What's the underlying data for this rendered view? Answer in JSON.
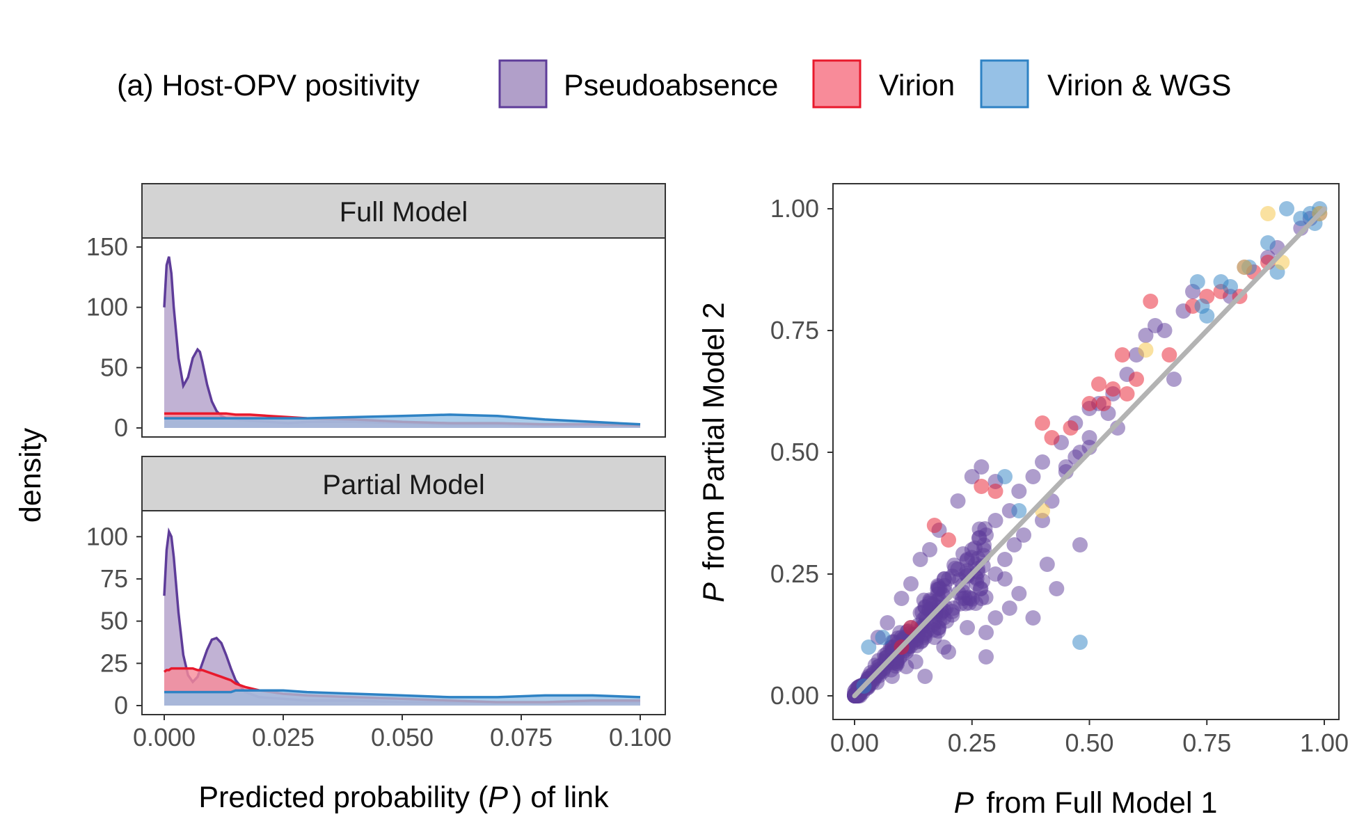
{
  "legend": {
    "title": "(a) Host-OPV positivity",
    "items": [
      {
        "label": "Pseudoabsence",
        "fill": "#b19fc9",
        "stroke": "#5e3c99"
      },
      {
        "label": "Virion",
        "fill": "#f88b99",
        "stroke": "#e8192c"
      },
      {
        "label": "Virion & WGS",
        "fill": "#96c1e6",
        "stroke": "#2e82c4"
      }
    ]
  },
  "colors": {
    "pseudoabsence": "#5e3c99",
    "virion": "#e8192c",
    "virion_wgs": "#2e82c4",
    "other_points": "#f6c342",
    "fit_line": "#b3b3b3",
    "strip_bg": "#d3d3d3"
  },
  "left": {
    "ylabel": "density",
    "xlabel_prefix": "Predicted probability (",
    "xlabel_italic": "P",
    "xlabel_suffix": ") of link",
    "x_ticks": [
      "0.000",
      "0.025",
      "0.050",
      "0.075",
      "0.100"
    ],
    "panels": [
      {
        "strip": "Full Model",
        "y_ticks": [
          "0",
          "50",
          "100",
          "150"
        ]
      },
      {
        "strip": "Partial Model",
        "y_ticks": [
          "0",
          "25",
          "50",
          "75",
          "100"
        ]
      }
    ]
  },
  "right": {
    "xlabel_italic": "P",
    "xlabel_rest": " from Full Model 1",
    "ylabel_italic": "P",
    "ylabel_rest": " from Partial Model 2",
    "x_ticks": [
      "0.00",
      "0.25",
      "0.50",
      "0.75",
      "1.00"
    ],
    "y_ticks": [
      "0.00",
      "0.25",
      "0.50",
      "0.75",
      "1.00"
    ]
  },
  "chart_data": [
    {
      "type": "area",
      "facet": "Full Model",
      "xlim": [
        0,
        0.1
      ],
      "ylim": [
        0,
        150
      ],
      "x": [
        0.0,
        0.0005,
        0.001,
        0.0015,
        0.002,
        0.003,
        0.004,
        0.005,
        0.006,
        0.007,
        0.0075,
        0.008,
        0.009,
        0.01,
        0.011,
        0.012,
        0.013,
        0.015,
        0.018,
        0.022,
        0.026,
        0.03,
        0.04,
        0.05,
        0.06,
        0.07,
        0.08,
        0.09,
        0.1
      ],
      "series": [
        {
          "name": "Pseudoabsence",
          "values": [
            100,
            135,
            142,
            128,
            100,
            58,
            35,
            42,
            58,
            65,
            63,
            55,
            36,
            22,
            14,
            10,
            8,
            7,
            6,
            5,
            4,
            5,
            5,
            4,
            3,
            3,
            2,
            2,
            2
          ]
        },
        {
          "name": "Virion",
          "values": [
            12,
            12,
            12,
            12,
            12,
            12,
            12,
            12,
            12,
            12,
            12,
            12,
            12,
            12,
            12,
            12,
            12,
            11,
            11,
            10,
            9,
            8,
            7,
            5,
            4,
            4,
            3,
            3,
            2
          ]
        },
        {
          "name": "Virion & WGS",
          "values": [
            8,
            8,
            8,
            8,
            8,
            8,
            8,
            8,
            8,
            8,
            8,
            8,
            8,
            8,
            8,
            8,
            8,
            8,
            8,
            8,
            8,
            8,
            9,
            10,
            11,
            10,
            7,
            5,
            3
          ]
        }
      ]
    },
    {
      "type": "area",
      "facet": "Partial Model",
      "xlim": [
        0,
        0.1
      ],
      "ylim": [
        0,
        110
      ],
      "x": [
        0.0,
        0.0005,
        0.001,
        0.0015,
        0.002,
        0.003,
        0.004,
        0.005,
        0.006,
        0.007,
        0.008,
        0.009,
        0.01,
        0.011,
        0.012,
        0.013,
        0.014,
        0.015,
        0.017,
        0.02,
        0.025,
        0.03,
        0.04,
        0.05,
        0.06,
        0.07,
        0.08,
        0.09,
        0.1
      ],
      "series": [
        {
          "name": "Pseudoabsence",
          "values": [
            65,
            92,
            103,
            100,
            88,
            55,
            30,
            18,
            14,
            17,
            25,
            33,
            39,
            40,
            37,
            30,
            22,
            15,
            8,
            5,
            4,
            3,
            3,
            2,
            2,
            2,
            2,
            2,
            2
          ]
        },
        {
          "name": "Virion",
          "values": [
            20,
            21,
            21,
            22,
            22,
            22,
            22,
            22,
            22,
            21,
            21,
            20,
            19,
            18,
            17,
            16,
            15,
            13,
            11,
            9,
            7,
            6,
            5,
            4,
            3,
            2,
            2,
            3,
            3
          ]
        },
        {
          "name": "Virion & WGS",
          "values": [
            8,
            8,
            8,
            8,
            8,
            8,
            8,
            8,
            8,
            8,
            8,
            8,
            8,
            8,
            8,
            8,
            8,
            9,
            9,
            9,
            9,
            8,
            7,
            6,
            5,
            5,
            6,
            6,
            5
          ]
        }
      ]
    },
    {
      "type": "scatter",
      "xlim": [
        -0.05,
        1.03
      ],
      "ylim": [
        -0.05,
        1.03
      ],
      "trend_line": {
        "x": [
          0,
          1
        ],
        "y": [
          0,
          1
        ]
      },
      "series": [
        {
          "name": "Pseudoabsence",
          "points": [
            [
              0.01,
              0.01
            ],
            [
              0.02,
              0.015
            ],
            [
              0.03,
              0.04
            ],
            [
              0.05,
              0.06
            ],
            [
              0.06,
              0.05
            ],
            [
              0.07,
              0.08
            ],
            [
              0.08,
              0.1
            ],
            [
              0.09,
              0.07
            ],
            [
              0.1,
              0.12
            ],
            [
              0.11,
              0.09
            ],
            [
              0.12,
              0.14
            ],
            [
              0.13,
              0.11
            ],
            [
              0.14,
              0.17
            ],
            [
              0.15,
              0.13
            ],
            [
              0.16,
              0.19
            ],
            [
              0.17,
              0.15
            ],
            [
              0.18,
              0.22
            ],
            [
              0.19,
              0.16
            ],
            [
              0.2,
              0.24
            ],
            [
              0.21,
              0.18
            ],
            [
              0.22,
              0.26
            ],
            [
              0.23,
              0.2
            ],
            [
              0.24,
              0.28
            ],
            [
              0.25,
              0.3
            ],
            [
              0.26,
              0.23
            ],
            [
              0.28,
              0.33
            ],
            [
              0.3,
              0.25
            ],
            [
              0.3,
              0.36
            ],
            [
              0.32,
              0.28
            ],
            [
              0.33,
              0.38
            ],
            [
              0.34,
              0.31
            ],
            [
              0.35,
              0.42
            ],
            [
              0.36,
              0.33
            ],
            [
              0.38,
              0.45
            ],
            [
              0.4,
              0.36
            ],
            [
              0.4,
              0.48
            ],
            [
              0.42,
              0.4
            ],
            [
              0.44,
              0.52
            ],
            [
              0.45,
              0.47
            ],
            [
              0.47,
              0.56
            ],
            [
              0.48,
              0.5
            ],
            [
              0.5,
              0.59
            ],
            [
              0.5,
              0.53
            ],
            [
              0.52,
              0.6
            ],
            [
              0.54,
              0.58
            ],
            [
              0.55,
              0.62
            ],
            [
              0.56,
              0.55
            ],
            [
              0.58,
              0.66
            ],
            [
              0.6,
              0.7
            ],
            [
              0.62,
              0.74
            ],
            [
              0.64,
              0.76
            ],
            [
              0.66,
              0.75
            ],
            [
              0.68,
              0.65
            ],
            [
              0.7,
              0.79
            ],
            [
              0.72,
              0.83
            ],
            [
              0.8,
              0.82
            ],
            [
              0.83,
              0.88
            ],
            [
              0.88,
              0.9
            ],
            [
              0.9,
              0.92
            ],
            [
              0.95,
              0.96
            ],
            [
              0.97,
              0.98
            ],
            [
              0.99,
              0.99
            ],
            [
              0.15,
              0.04
            ],
            [
              0.2,
              0.09
            ],
            [
              0.19,
              0.1
            ],
            [
              0.28,
              0.08
            ],
            [
              0.28,
              0.13
            ],
            [
              0.3,
              0.16
            ],
            [
              0.33,
              0.18
            ],
            [
              0.35,
              0.21
            ],
            [
              0.38,
              0.16
            ],
            [
              0.41,
              0.27
            ],
            [
              0.43,
              0.22
            ],
            [
              0.48,
              0.31
            ],
            [
              0.22,
              0.4
            ],
            [
              0.25,
              0.45
            ],
            [
              0.27,
              0.47
            ],
            [
              0.3,
              0.44
            ],
            [
              0.45,
              0.46
            ],
            [
              0.47,
              0.49
            ],
            [
              0.5,
              0.51
            ],
            [
              0.05,
              0.12
            ],
            [
              0.07,
              0.15
            ],
            [
              0.1,
              0.2
            ],
            [
              0.12,
              0.23
            ],
            [
              0.14,
              0.28
            ],
            [
              0.16,
              0.3
            ],
            [
              0.18,
              0.34
            ],
            [
              0.08,
              0.04
            ],
            [
              0.11,
              0.06
            ],
            [
              0.13,
              0.07
            ],
            [
              0.17,
              0.12
            ],
            [
              0.24,
              0.14
            ],
            [
              0.27,
              0.2
            ],
            [
              0.32,
              0.24
            ]
          ]
        },
        {
          "name": "Virion",
          "points": [
            [
              0.17,
              0.35
            ],
            [
              0.2,
              0.32
            ],
            [
              0.27,
              0.43
            ],
            [
              0.3,
              0.42
            ],
            [
              0.4,
              0.56
            ],
            [
              0.42,
              0.53
            ],
            [
              0.46,
              0.55
            ],
            [
              0.5,
              0.6
            ],
            [
              0.52,
              0.64
            ],
            [
              0.55,
              0.63
            ],
            [
              0.57,
              0.7
            ],
            [
              0.58,
              0.62
            ],
            [
              0.6,
              0.65
            ],
            [
              0.63,
              0.81
            ],
            [
              0.67,
              0.7
            ],
            [
              0.72,
              0.8
            ],
            [
              0.75,
              0.82
            ],
            [
              0.78,
              0.83
            ],
            [
              0.82,
              0.82
            ],
            [
              0.85,
              0.87
            ],
            [
              0.88,
              0.89
            ],
            [
              0.12,
              0.14
            ],
            [
              0.1,
              0.1
            ],
            [
              0.53,
              0.6
            ]
          ]
        },
        {
          "name": "Virion & WGS",
          "points": [
            [
              0.02,
              0.02
            ],
            [
              0.03,
              0.1
            ],
            [
              0.06,
              0.12
            ],
            [
              0.32,
              0.45
            ],
            [
              0.35,
              0.38
            ],
            [
              0.48,
              0.11
            ],
            [
              0.74,
              0.8
            ],
            [
              0.75,
              0.78
            ],
            [
              0.78,
              0.85
            ],
            [
              0.84,
              0.88
            ],
            [
              0.88,
              0.93
            ],
            [
              0.9,
              0.87
            ],
            [
              0.92,
              1.0
            ],
            [
              0.95,
              0.98
            ],
            [
              0.97,
              0.99
            ],
            [
              0.99,
              1.0
            ],
            [
              0.98,
              0.97
            ],
            [
              0.73,
              0.85
            ],
            [
              0.8,
              0.84
            ]
          ]
        },
        {
          "name": "other",
          "points": [
            [
              0.4,
              0.38
            ],
            [
              0.62,
              0.71
            ],
            [
              0.88,
              0.99
            ],
            [
              0.91,
              0.89
            ],
            [
              0.99,
              0.99
            ],
            [
              0.83,
              0.88
            ]
          ]
        }
      ]
    }
  ]
}
